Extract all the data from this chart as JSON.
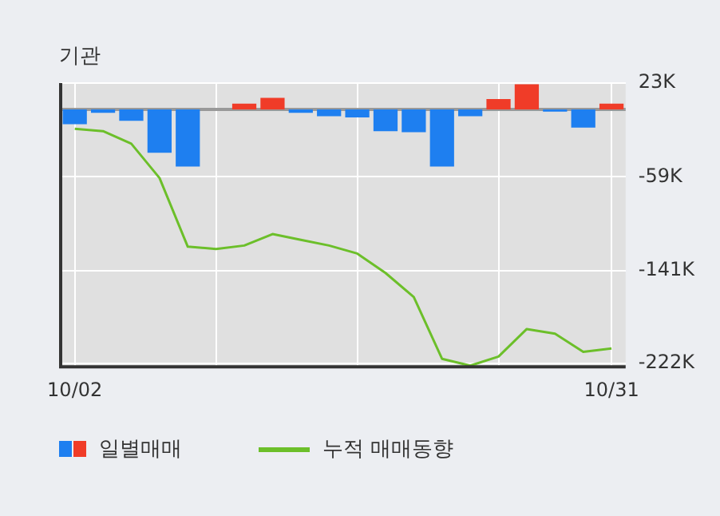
{
  "chart_data": {
    "type": "bar",
    "title": "기관",
    "categories": [
      "10/02",
      null,
      null,
      null,
      null,
      null,
      null,
      null,
      null,
      null,
      null,
      null,
      null,
      null,
      null,
      null,
      null,
      null,
      null,
      "10/31"
    ],
    "series": [
      {
        "name": "일별매매",
        "values": [
          -13000,
          -3000,
          -10000,
          -38000,
          -50000,
          0,
          5000,
          10000,
          -3000,
          -6000,
          -7000,
          -19000,
          -20000,
          -50000,
          -6000,
          9000,
          22000,
          -2000,
          -16000,
          5000
        ],
        "colors": [
          "#1e7ff0",
          "#1e7ff0",
          "#1e7ff0",
          "#1e7ff0",
          "#1e7ff0",
          "#1e7ff0",
          "#f03c28",
          "#f03c28",
          "#1e7ff0",
          "#1e7ff0",
          "#1e7ff0",
          "#1e7ff0",
          "#1e7ff0",
          "#1e7ff0",
          "#1e7ff0",
          "#f03c28",
          "#f03c28",
          "#1e7ff0",
          "#1e7ff0",
          "#f03c28"
        ]
      },
      {
        "name": "누적 매매동향",
        "type": "line",
        "color": "#6cbf2a",
        "values": [
          -17000,
          -19000,
          -30000,
          -60000,
          -120000,
          -122000,
          -119000,
          -109000,
          -114000,
          -119000,
          -126000,
          -143000,
          -164000,
          -218000,
          -224000,
          -216000,
          -192000,
          -196000,
          -212000,
          -209000
        ]
      }
    ],
    "ylim": [
      -225000,
      23000
    ],
    "yticks": [
      {
        "value": 23000,
        "label": "23K"
      },
      {
        "value": -59000,
        "label": "-59K"
      },
      {
        "value": -141000,
        "label": "-141K"
      },
      {
        "value": -222000,
        "label": "-222K"
      }
    ],
    "ref_lines": [
      {
        "axis": "y",
        "value": 0,
        "color": "#999999"
      }
    ],
    "grid": true,
    "legend": "bottom",
    "marker": "none",
    "line_style": "solid"
  }
}
